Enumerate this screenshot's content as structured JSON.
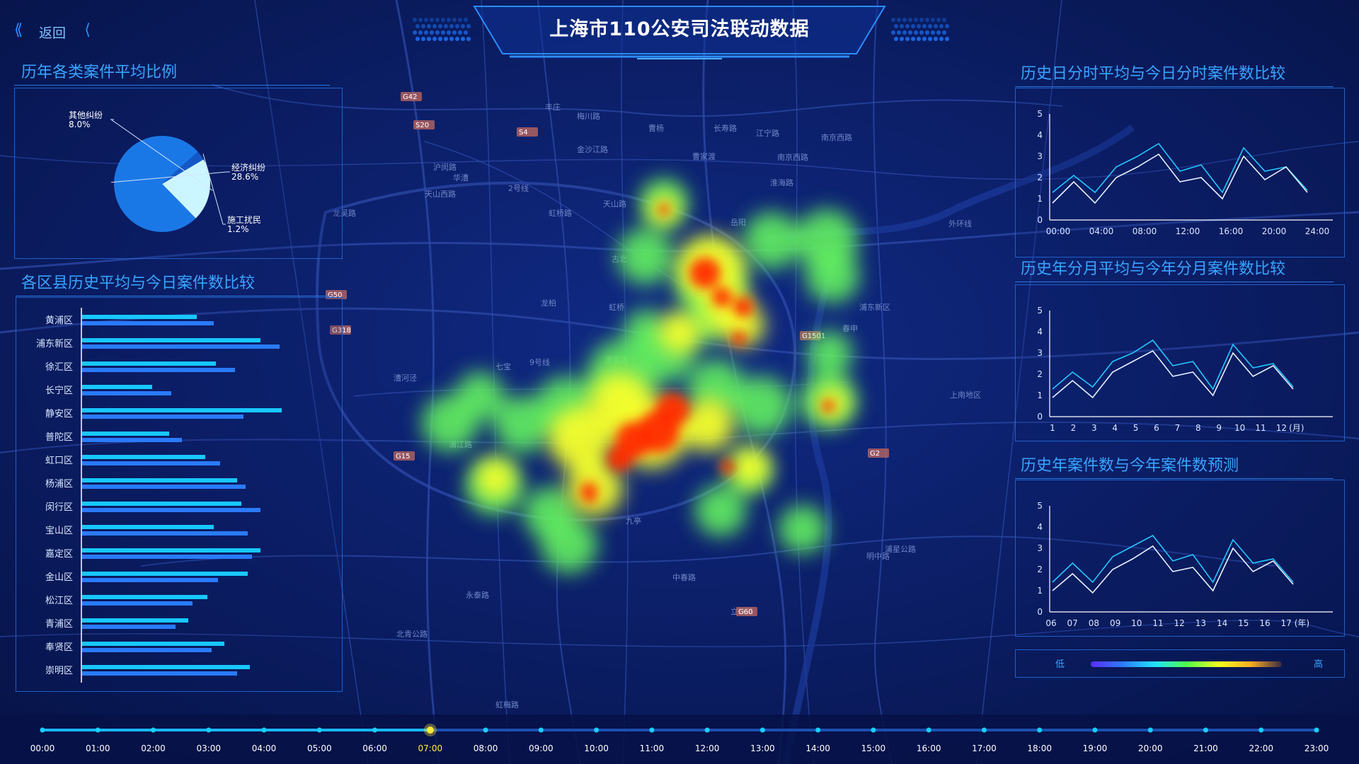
{
  "header": {
    "title": "上海市110公安司法联动数据",
    "back_label": "返回"
  },
  "map": {
    "place_labels": [
      "丰庄",
      "梅川路",
      "曹杨",
      "长寿路",
      "江宁路",
      "南京西路",
      "金沙江路",
      "曹家渡",
      "南京西路",
      "华漕",
      "天山西路",
      "天山路",
      "2号线",
      "淮海路",
      "虹桥路",
      "岳阳",
      "古北",
      "龙柏",
      "虹桥",
      "七宝",
      "9号线",
      "漕宝路",
      "漕河泾",
      "浦江路",
      "九亭",
      "春申",
      "浦东新区",
      "上南地区",
      "永泰路",
      "明中路",
      "浦星公路",
      "立跃路",
      "龙吴路",
      "北青公路",
      "中春路",
      "沪闵路",
      "虹梅路",
      "外环线"
    ],
    "shield_labels": [
      "G42",
      "S20",
      "G50",
      "G318",
      "G15",
      "S4",
      "G2",
      "G1501",
      "G60"
    ]
  },
  "panels": {
    "pie": {
      "title": "历年各类案件平均比例",
      "chart_data": {
        "type": "pie",
        "slices": [
          {
            "name": "其他纠纷",
            "value": 8.0,
            "label": "8.0%",
            "color": "#ccf6ff"
          },
          {
            "name": "经济纠纷",
            "value": 28.6,
            "label": "28.6%",
            "color": "#1a78e6"
          },
          {
            "name": "施工扰民",
            "value": 1.2,
            "label": "1.2%",
            "color": "#1458c8"
          }
        ]
      }
    },
    "district": {
      "title": "各区县历史平均与今日案件数比较",
      "chart_data": {
        "type": "bar",
        "orientation": "horizontal",
        "categories": [
          "黄浦区",
          "浦东新区",
          "徐汇区",
          "长宁区",
          "静安区",
          "普陀区",
          "虹口区",
          "杨浦区",
          "闵行区",
          "宝山区",
          "嘉定区",
          "金山区",
          "松江区",
          "青浦区",
          "奉贤区",
          "崇明区"
        ],
        "xlim": [
          0,
          100
        ],
        "series": [
          {
            "color": "#17c8ff",
            "values": [
              54,
              84,
              63,
              33,
              94,
              41,
              58,
              73,
              75,
              62,
              84,
              78,
              59,
              50,
              67,
              79
            ]
          },
          {
            "color": "#2a7bff",
            "values": [
              62,
              93,
              72,
              42,
              76,
              47,
              65,
              77,
              84,
              78,
              80,
              64,
              52,
              44,
              61,
              73
            ]
          }
        ]
      }
    },
    "hourly": {
      "title": "历史日分时平均与今日分时案件数比较",
      "chart_data": {
        "type": "line",
        "x_ticks": [
          "00:00",
          "04:00",
          "08:00",
          "12:00",
          "16:00",
          "20:00",
          "24:00"
        ],
        "ylim": [
          0,
          5
        ],
        "y_ticks": [
          "0",
          "1",
          "2",
          "3",
          "4",
          "5"
        ],
        "series": [
          {
            "color": "#22c8ff",
            "values": [
              1.3,
              2.1,
              1.3,
              2.5,
              3.0,
              3.6,
              2.3,
              2.6,
              1.3,
              3.4,
              2.3,
              2.5,
              1.4
            ]
          },
          {
            "color": "#e6f2ff",
            "values": [
              0.8,
              1.8,
              0.8,
              2.0,
              2.5,
              3.1,
              1.8,
              2.0,
              1.0,
              3.0,
              1.9,
              2.5,
              1.3
            ]
          }
        ]
      }
    },
    "monthly": {
      "title": "历史年分月平均与今年分月案件数比较",
      "chart_data": {
        "type": "line",
        "x_ticks": [
          "1",
          "2",
          "3",
          "4",
          "5",
          "6",
          "7",
          "8",
          "9",
          "10",
          "11",
          "12"
        ],
        "x_unit": "(月)",
        "ylim": [
          0,
          5
        ],
        "y_ticks": [
          "0",
          "1",
          "2",
          "3",
          "4",
          "5"
        ],
        "series": [
          {
            "color": "#22c8ff",
            "values": [
              1.3,
              2.1,
              1.4,
              2.6,
              3.0,
              3.6,
              2.4,
              2.6,
              1.3,
              3.4,
              2.3,
              2.5,
              1.4
            ]
          },
          {
            "color": "#e6f2ff",
            "values": [
              0.9,
              1.7,
              0.9,
              2.1,
              2.6,
              3.1,
              1.9,
              2.1,
              1.0,
              3.0,
              1.9,
              2.4,
              1.3
            ]
          }
        ]
      }
    },
    "yearly": {
      "title": "历史年案件数与今年案件数预测",
      "chart_data": {
        "type": "line",
        "x_ticks": [
          "06",
          "07",
          "08",
          "09",
          "10",
          "11",
          "12",
          "13",
          "14",
          "15",
          "16",
          "17"
        ],
        "x_unit": "(年)",
        "ylim": [
          0,
          5
        ],
        "y_ticks": [
          "0",
          "1",
          "2",
          "3",
          "4",
          "5"
        ],
        "series": [
          {
            "color": "#22c8ff",
            "values": [
              1.4,
              2.3,
              1.4,
              2.6,
              3.1,
              3.6,
              2.4,
              2.7,
              1.4,
              3.4,
              2.3,
              2.5,
              1.4
            ]
          },
          {
            "color": "#e6f2ff",
            "values": [
              1.0,
              1.8,
              0.9,
              2.0,
              2.5,
              3.1,
              1.9,
              2.1,
              1.0,
              3.0,
              1.9,
              2.4,
              1.3
            ]
          }
        ]
      }
    }
  },
  "legend": {
    "low": "低",
    "high": "高"
  },
  "timeline": {
    "active_index": 7,
    "labels": [
      "00:00",
      "01:00",
      "02:00",
      "03:00",
      "04:00",
      "05:00",
      "06:00",
      "07:00",
      "08:00",
      "09:00",
      "10:00",
      "11:00",
      "12:00",
      "13:00",
      "14:00",
      "15:00",
      "16:00",
      "17:00",
      "18:00",
      "19:00",
      "20:00",
      "21:00",
      "22:00",
      "23:00"
    ]
  }
}
